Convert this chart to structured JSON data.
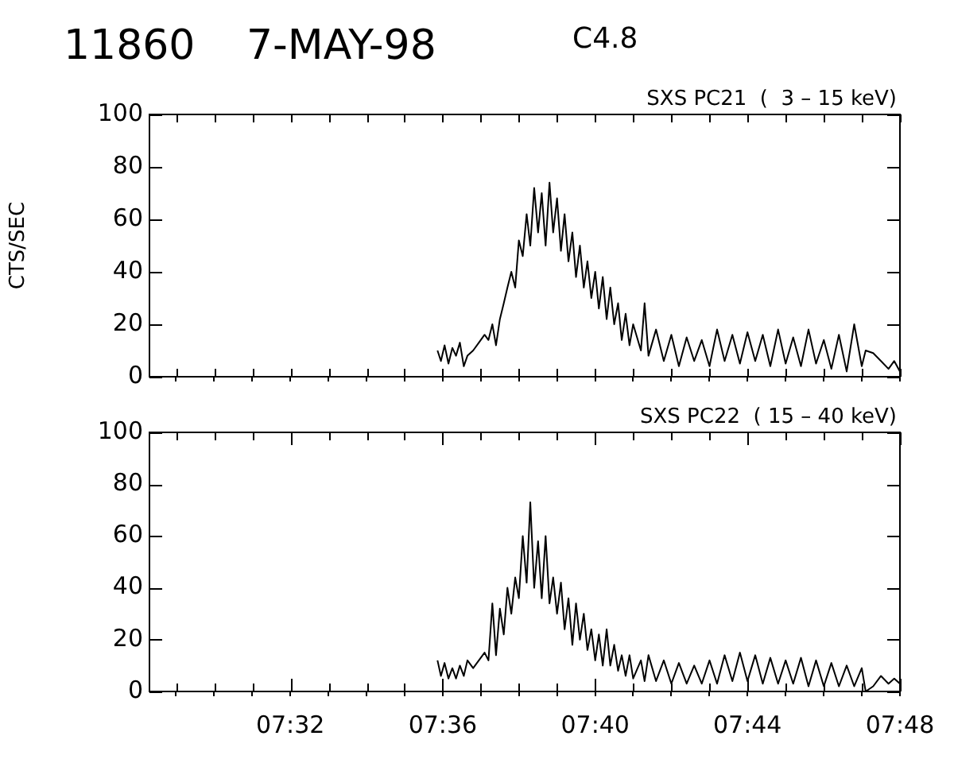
{
  "chart_data": [
    {
      "type": "line",
      "title": "11860",
      "subtitle": "7-MAY-98",
      "annotations": [
        "C4.8"
      ],
      "ylabel": "CTS/SEC",
      "x": [
        7.5977,
        7.5992,
        7.6008,
        7.6025,
        7.6042,
        7.6058,
        7.6075,
        7.6092,
        7.6108,
        7.6133,
        7.6158,
        7.6183,
        7.62,
        7.6217,
        7.6233,
        7.625,
        7.6267,
        7.6283,
        7.63,
        7.6317,
        7.6333,
        7.635,
        7.6367,
        7.6383,
        7.64,
        7.6417,
        7.6433,
        7.645,
        7.6467,
        7.6483,
        7.65,
        7.6517,
        7.6533,
        7.655,
        7.6567,
        7.6583,
        7.66,
        7.6617,
        7.6633,
        7.665,
        7.6667,
        7.6683,
        7.67,
        7.6717,
        7.6733,
        7.675,
        7.6767,
        7.6783,
        7.68,
        7.6817,
        7.6833,
        7.6867,
        7.6883,
        7.69,
        7.6933,
        7.6967,
        7.7,
        7.7033,
        7.7067,
        7.71,
        7.7133,
        7.7167,
        7.72,
        7.7233,
        7.7267,
        7.73,
        7.7333,
        7.7367,
        7.74,
        7.7433,
        7.7467,
        7.75,
        7.7533,
        7.7567,
        7.76,
        7.7633,
        7.7667,
        7.77,
        7.7733,
        7.7767,
        7.78,
        7.7833,
        7.785,
        7.7883,
        7.7917,
        7.795,
        7.7975,
        7.8
      ],
      "series": [
        {
          "name": "SXS PC21  (  3 – 15 keV)",
          "color": "#000000",
          "values": [
            10,
            6,
            12,
            5,
            11,
            8,
            13,
            4,
            8,
            10,
            13,
            16,
            14,
            20,
            12,
            22,
            28,
            34,
            40,
            34,
            52,
            46,
            62,
            50,
            72,
            55,
            70,
            50,
            74,
            55,
            68,
            48,
            62,
            44,
            55,
            38,
            50,
            34,
            44,
            30,
            40,
            26,
            38,
            22,
            34,
            20,
            28,
            14,
            24,
            12,
            20,
            10,
            28,
            8,
            18,
            6,
            16,
            4,
            15,
            6,
            14,
            4,
            18,
            6,
            16,
            5,
            17,
            6,
            16,
            4,
            18,
            5,
            15,
            4,
            18,
            5,
            14,
            3,
            16,
            2,
            20,
            4,
            10,
            9,
            6,
            3,
            6,
            2
          ]
        }
      ],
      "xlim": [
        7.4717,
        7.8
      ],
      "xticks": [
        {
          "value": 7.4833,
          "label": null
        },
        {
          "value": 7.5,
          "label": null
        },
        {
          "value": 7.5167,
          "label": null
        },
        {
          "value": 7.5333,
          "label": null
        },
        {
          "value": 7.55,
          "label": null
        },
        {
          "value": 7.5667,
          "label": null
        },
        {
          "value": 7.5833,
          "label": null
        },
        {
          "value": 7.6,
          "label": null
        },
        {
          "value": 7.6167,
          "label": null
        },
        {
          "value": 7.6333,
          "label": null
        },
        {
          "value": 7.65,
          "label": null
        },
        {
          "value": 7.6667,
          "label": null
        },
        {
          "value": 7.6833,
          "label": null
        },
        {
          "value": 7.7,
          "label": null
        },
        {
          "value": 7.7167,
          "label": null
        },
        {
          "value": 7.7333,
          "label": null
        },
        {
          "value": 7.75,
          "label": null
        },
        {
          "value": 7.7667,
          "label": null
        },
        {
          "value": 7.7833,
          "label": null
        },
        {
          "value": 7.8,
          "label": null
        }
      ],
      "ylim": [
        0,
        100
      ],
      "yticks": [
        0,
        20,
        40,
        60,
        80,
        100
      ],
      "tick_labels": "y",
      "grid": false,
      "legend": false
    },
    {
      "type": "line",
      "x": [
        7.5977,
        7.5992,
        7.6008,
        7.6025,
        7.6042,
        7.6058,
        7.6075,
        7.6092,
        7.6108,
        7.6133,
        7.6158,
        7.6183,
        7.62,
        7.6217,
        7.6233,
        7.625,
        7.6267,
        7.6283,
        7.63,
        7.6317,
        7.6333,
        7.635,
        7.6367,
        7.6383,
        7.64,
        7.6417,
        7.6433,
        7.645,
        7.6467,
        7.6483,
        7.65,
        7.6517,
        7.6533,
        7.655,
        7.6567,
        7.6583,
        7.66,
        7.6617,
        7.6633,
        7.665,
        7.6667,
        7.6683,
        7.67,
        7.6717,
        7.6733,
        7.675,
        7.6767,
        7.6783,
        7.68,
        7.6817,
        7.6833,
        7.6867,
        7.6883,
        7.69,
        7.6933,
        7.6967,
        7.7,
        7.7033,
        7.7067,
        7.71,
        7.7133,
        7.7167,
        7.72,
        7.7233,
        7.7267,
        7.73,
        7.7333,
        7.7367,
        7.74,
        7.7433,
        7.7467,
        7.75,
        7.7533,
        7.7567,
        7.76,
        7.7633,
        7.7667,
        7.77,
        7.7733,
        7.7767,
        7.78,
        7.7833,
        7.785,
        7.7883,
        7.7917,
        7.795,
        7.7975,
        7.8
      ],
      "series": [
        {
          "name": "SXS PC22  ( 15 – 40 keV)",
          "color": "#000000",
          "values": [
            12,
            6,
            11,
            5,
            9,
            5,
            10,
            6,
            12,
            9,
            12,
            15,
            12,
            34,
            14,
            32,
            22,
            40,
            30,
            44,
            36,
            60,
            42,
            73,
            40,
            58,
            36,
            60,
            34,
            44,
            30,
            42,
            24,
            36,
            18,
            34,
            20,
            30,
            16,
            24,
            12,
            22,
            10,
            24,
            10,
            18,
            8,
            14,
            6,
            14,
            5,
            12,
            4,
            14,
            4,
            12,
            3,
            11,
            3,
            10,
            3,
            12,
            3,
            14,
            4,
            15,
            4,
            14,
            3,
            13,
            3,
            12,
            3,
            13,
            2,
            12,
            2,
            11,
            2,
            10,
            2,
            9,
            0,
            2,
            6,
            3,
            5,
            3
          ]
        }
      ],
      "xlim": [
        7.4717,
        7.8
      ],
      "xticks": [
        {
          "value": 7.4833,
          "label": null
        },
        {
          "value": 7.5,
          "label": null
        },
        {
          "value": 7.5167,
          "label": null
        },
        {
          "value": 7.5333,
          "label": "07:32"
        },
        {
          "value": 7.55,
          "label": null
        },
        {
          "value": 7.5667,
          "label": null
        },
        {
          "value": 7.5833,
          "label": null
        },
        {
          "value": 7.6,
          "label": "07:36"
        },
        {
          "value": 7.6167,
          "label": null
        },
        {
          "value": 7.6333,
          "label": null
        },
        {
          "value": 7.65,
          "label": null
        },
        {
          "value": 7.6667,
          "label": "07:40"
        },
        {
          "value": 7.6833,
          "label": null
        },
        {
          "value": 7.7,
          "label": null
        },
        {
          "value": 7.7167,
          "label": null
        },
        {
          "value": 7.7333,
          "label": "07:44"
        },
        {
          "value": 7.75,
          "label": null
        },
        {
          "value": 7.7667,
          "label": null
        },
        {
          "value": 7.7833,
          "label": null
        },
        {
          "value": 7.8,
          "label": "07:48"
        }
      ],
      "ylim": [
        0,
        100
      ],
      "yticks": [
        0,
        20,
        40,
        60,
        80,
        100
      ],
      "grid": false,
      "legend": false
    }
  ]
}
